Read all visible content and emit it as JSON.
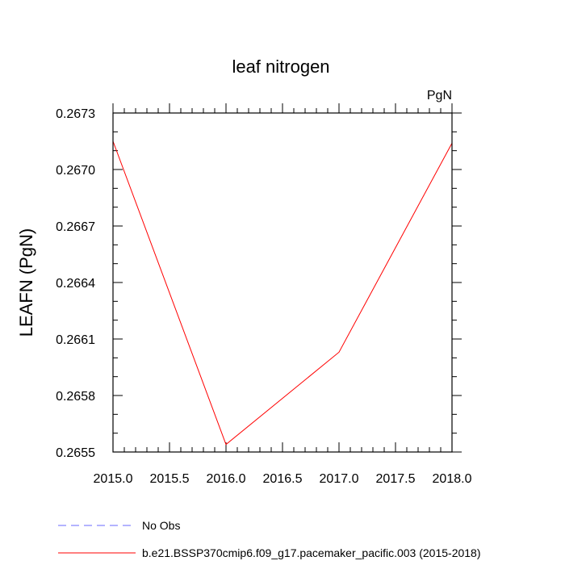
{
  "chart_data": {
    "type": "line",
    "title": "leaf nitrogen",
    "units_label": "PgN",
    "ylabel": "LEAFN  (PgN)",
    "xlabel": "",
    "xlim": [
      2015.0,
      2018.0
    ],
    "ylim": [
      0.2655,
      0.2673
    ],
    "x_ticks": [
      2015.0,
      2015.5,
      2016.0,
      2016.5,
      2017.0,
      2017.5,
      2018.0
    ],
    "x_tick_labels": [
      "2015.0",
      "2015.5",
      "2016.0",
      "2016.5",
      "2017.0",
      "2017.5",
      "2018.0"
    ],
    "y_ticks": [
      0.2655,
      0.2658,
      0.2661,
      0.2664,
      0.2667,
      0.267,
      0.2673
    ],
    "y_tick_labels": [
      "0.2655",
      "0.2658",
      "0.2661",
      "0.2664",
      "0.2667",
      "0.2670",
      "0.2673"
    ],
    "grid": false,
    "legend_position": "bottom-left",
    "series": [
      {
        "name": "b.e21.BSSP370cmip6.f09_g17.pacemaker_pacific.003 (2015-2018)",
        "color": "#ff0000",
        "style": "solid",
        "x": [
          2015.0,
          2016.0,
          2017.0,
          2018.0
        ],
        "y": [
          0.26715,
          0.26554,
          0.26603,
          0.26714
        ]
      }
    ],
    "legend": [
      {
        "label": "No Obs",
        "color": "#6a6aff",
        "style": "dashed"
      },
      {
        "label": "b.e21.BSSP370cmip6.f09_g17.pacemaker_pacific.003 (2015-2018)",
        "color": "#ff0000",
        "style": "solid"
      }
    ]
  }
}
